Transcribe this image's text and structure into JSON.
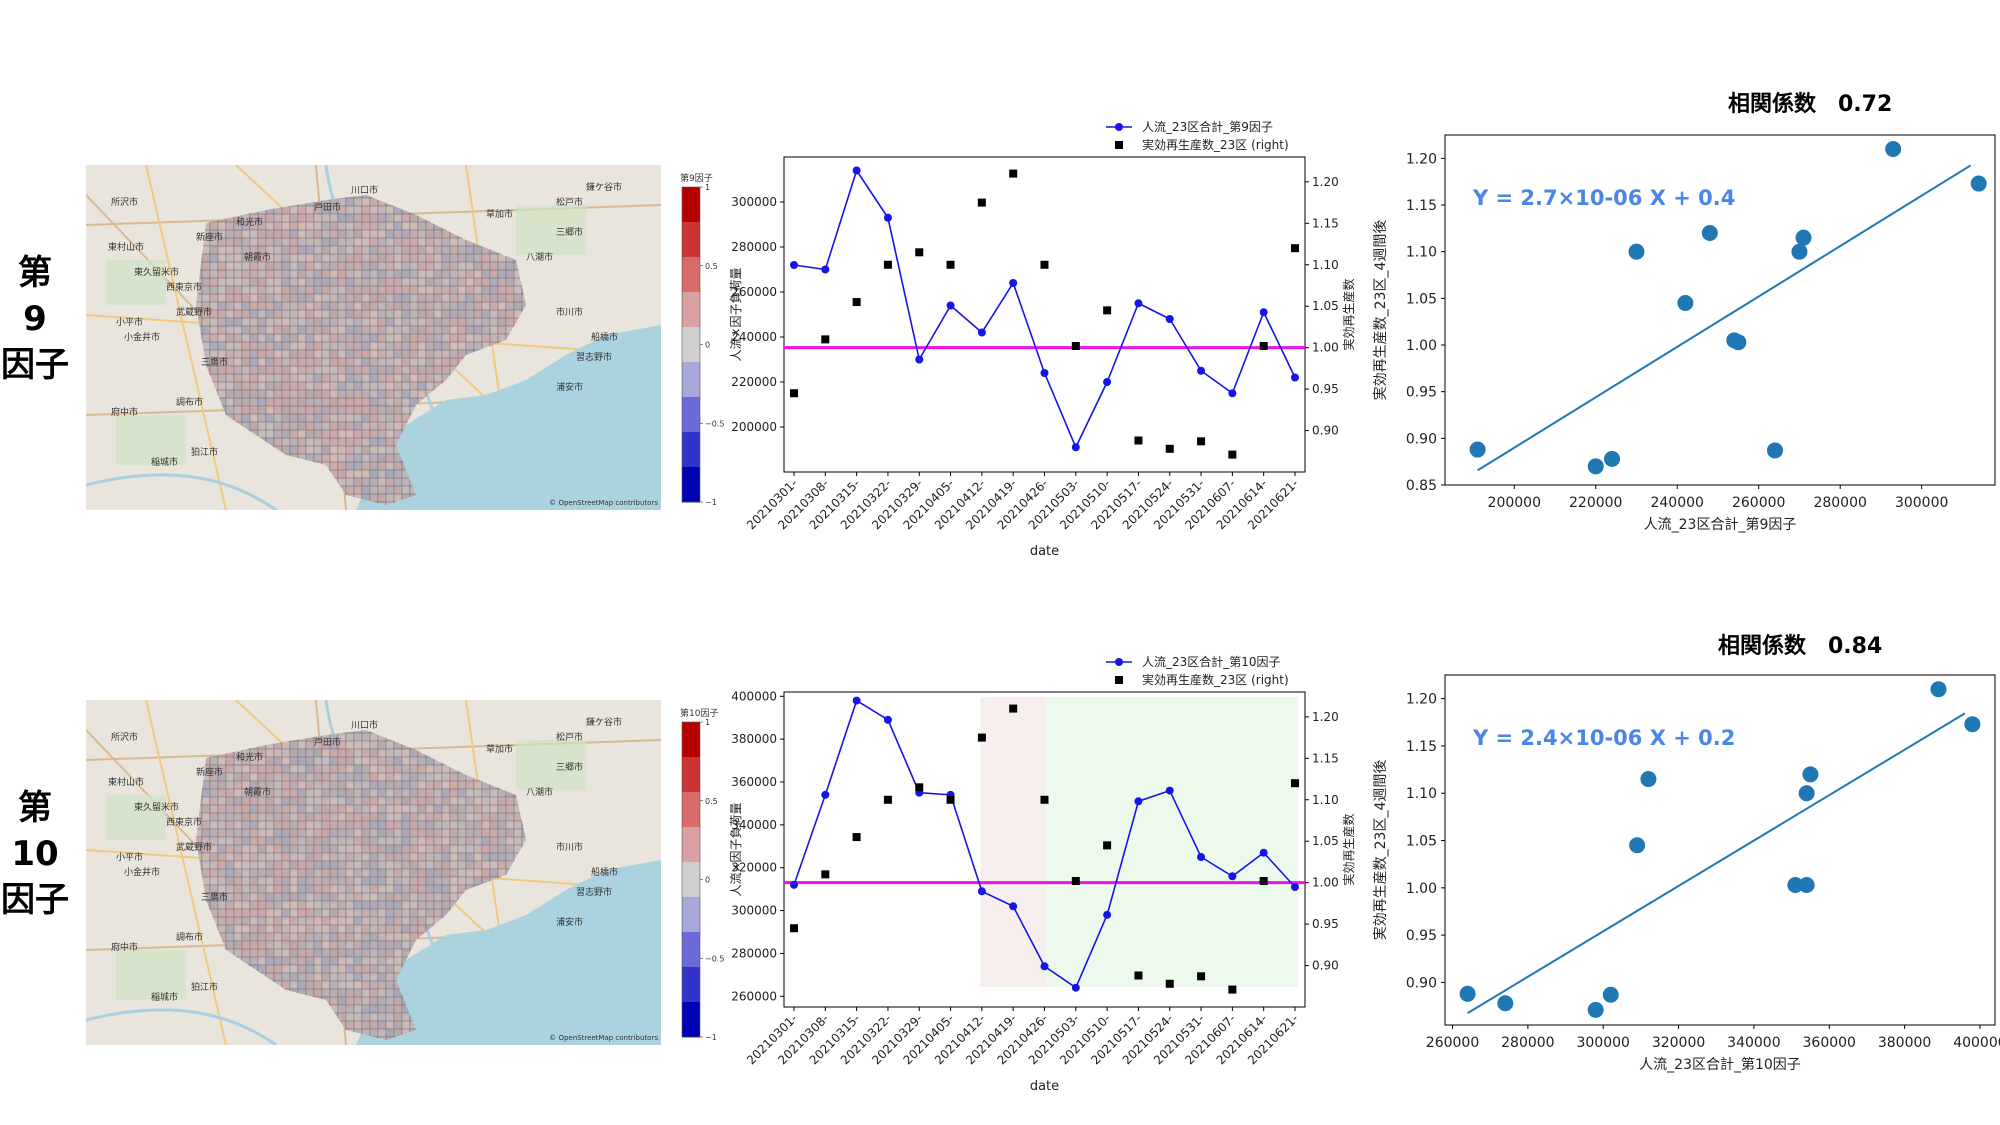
{
  "rows": [
    {
      "label_lines": [
        "第",
        "9",
        "因子"
      ],
      "map": {
        "colorbar_title": "第9因子",
        "colorbar_ticks": [
          "1",
          "0.5",
          "0",
          "−0.5",
          "−1"
        ],
        "attribution": "© OpenStreetMap contributors",
        "place_labels": [
          "所沢市",
          "東村山市",
          "東久留米市",
          "小平市",
          "小金井市",
          "西東京市",
          "武蔵野市",
          "三鷹市",
          "調布市",
          "府中市",
          "稲城市",
          "狛江市",
          "新座市",
          "和光市",
          "朝霞市",
          "戸田市",
          "川口市",
          "草加市",
          "八潮市",
          "三郷市",
          "松戸市",
          "市川市",
          "船橋市",
          "習志野市",
          "浦安市",
          "鎌ケ谷市"
        ]
      },
      "timeseries": {
        "legend": [
          "人流_23区合計_第9因子",
          "実効再生産数_23区 (right)"
        ],
        "ylabel_left": "人流×因子負荷量",
        "ylabel_right": "実効再生産数",
        "xlabel": "date",
        "shading": false
      },
      "scatter": {
        "corr_title": "相関係数　0.72",
        "equation": "Y = 2.7×10-06 X + 0.4",
        "xlabel": "人流_23区合計_第9因子",
        "ylabel": "実効再生産数_23区_4週間後"
      }
    },
    {
      "label_lines": [
        "第",
        "10",
        "因子"
      ],
      "map": {
        "colorbar_title": "第10因子",
        "colorbar_ticks": [
          "1",
          "0.5",
          "0",
          "−0.5",
          "−1"
        ],
        "attribution": "© OpenStreetMap contributors",
        "place_labels": [
          "所沢市",
          "東村山市",
          "東久留米市",
          "小平市",
          "小金井市",
          "西東京市",
          "武蔵野市",
          "三鷹市",
          "調布市",
          "府中市",
          "稲城市",
          "狛江市",
          "新座市",
          "和光市",
          "朝霞市",
          "戸田市",
          "川口市",
          "草加市",
          "八潮市",
          "三郷市",
          "松戸市",
          "市川市",
          "船橋市",
          "習志野市",
          "浦安市",
          "鎌ケ谷市"
        ]
      },
      "timeseries": {
        "legend": [
          "人流_23区合計_第10因子",
          "実効再生産数_23区 (right)"
        ],
        "ylabel_left": "人流×因子負荷量",
        "ylabel_right": "実効再生産数",
        "xlabel": "date",
        "shading": true
      },
      "scatter": {
        "corr_title": "相関係数　0.84",
        "equation": "Y = 2.4×10-06 X + 0.2",
        "xlabel": "人流_23区合計_第10因子",
        "ylabel": "実効再生産数_23区_4週間後"
      }
    }
  ],
  "chart_data": [
    {
      "type": "line",
      "x": [
        "20210301-",
        "20210308-",
        "20210315-",
        "20210322-",
        "20210329-",
        "20210405-",
        "20210412-",
        "20210419-",
        "20210426-",
        "20210503-",
        "20210510-",
        "20210517-",
        "20210524-",
        "20210531-",
        "20210607-",
        "20210614-",
        "20210621-"
      ],
      "series": [
        {
          "name": "人流_23区合計_第9因子",
          "axis": "left",
          "values": [
            272000,
            270000,
            314000,
            293000,
            230000,
            254000,
            242000,
            264000,
            224000,
            191000,
            220000,
            255000,
            248000,
            225000,
            215000,
            251000,
            222000
          ]
        },
        {
          "name": "実効再生産数_23区 (right)",
          "axis": "right",
          "values": [
            0.945,
            1.01,
            1.055,
            1.1,
            1.115,
            1.1,
            1.175,
            1.21,
            1.1,
            1.002,
            1.045,
            0.888,
            0.878,
            0.887,
            0.871,
            1.002,
            1.12
          ]
        }
      ],
      "ylim_left": [
        180000,
        320000
      ],
      "yticks_left": [
        200000,
        220000,
        240000,
        260000,
        280000,
        300000
      ],
      "ylim_right": [
        0.85,
        1.23
      ],
      "yticks_right": [
        0.9,
        0.95,
        1.0,
        1.05,
        1.1,
        1.15,
        1.2
      ],
      "reference_line": {
        "axis": "right",
        "y": 1.0,
        "color": "#ee11ee"
      },
      "colors": {
        "line": "#1515e8",
        "marker": "#000000"
      },
      "legend_placement": "top-right"
    },
    {
      "type": "scatter",
      "points": [
        [
          191000,
          0.888
        ],
        [
          220000,
          0.87
        ],
        [
          224000,
          0.878
        ],
        [
          230000,
          1.1
        ],
        [
          242000,
          1.045
        ],
        [
          248000,
          1.12
        ],
        [
          254000,
          1.005
        ],
        [
          255000,
          1.003
        ],
        [
          264000,
          0.887
        ],
        [
          270000,
          1.1
        ],
        [
          271000,
          1.115
        ],
        [
          293000,
          1.21
        ],
        [
          314000,
          1.173
        ]
      ],
      "fit": {
        "slope": 2.7e-06,
        "intercept": 0.35,
        "x_range": [
          191000,
          312000
        ]
      },
      "xlim": [
        183000,
        318000
      ],
      "ylim": [
        0.85,
        1.225
      ],
      "xticks": [
        200000,
        220000,
        240000,
        260000,
        280000,
        300000
      ],
      "yticks": [
        0.85,
        0.9,
        0.95,
        1.0,
        1.05,
        1.1,
        1.15,
        1.2
      ],
      "colors": {
        "point": "#1f77b4",
        "line": "#1f77b4",
        "equation": "#4a86e8"
      }
    },
    {
      "type": "line",
      "x": [
        "20210301-",
        "20210308-",
        "20210315-",
        "20210322-",
        "20210329-",
        "20210405-",
        "20210412-",
        "20210419-",
        "20210426-",
        "20210503-",
        "20210510-",
        "20210517-",
        "20210524-",
        "20210531-",
        "20210607-",
        "20210614-",
        "20210621-"
      ],
      "series": [
        {
          "name": "人流_23区合計_第10因子",
          "axis": "left",
          "values": [
            312000,
            354000,
            398000,
            389000,
            355000,
            354000,
            309000,
            302000,
            274000,
            264000,
            298000,
            351000,
            356000,
            325000,
            316000,
            327000,
            311000
          ]
        },
        {
          "name": "実効再生産数_23区 (right)",
          "axis": "right",
          "values": [
            0.945,
            1.01,
            1.055,
            1.1,
            1.115,
            1.1,
            1.175,
            1.21,
            1.1,
            1.002,
            1.045,
            0.888,
            0.878,
            0.887,
            0.871,
            1.002,
            1.12
          ]
        }
      ],
      "ylim_left": [
        255000,
        402000
      ],
      "yticks_left": [
        260000,
        280000,
        300000,
        320000,
        340000,
        360000,
        380000,
        400000
      ],
      "ylim_right": [
        0.85,
        1.23
      ],
      "yticks_right": [
        0.9,
        0.95,
        1.0,
        1.05,
        1.1,
        1.15,
        1.2
      ],
      "reference_line": {
        "axis": "right",
        "y": 1.0,
        "color": "#ee11ee"
      },
      "shaded_ranges": [
        {
          "from": 5.95,
          "to": 8.05,
          "color": "#f7eeee"
        },
        {
          "from": 8.05,
          "to": 16.1,
          "color": "#eef9ee"
        }
      ],
      "colors": {
        "line": "#1515e8",
        "marker": "#000000"
      },
      "legend_placement": "top-right"
    },
    {
      "type": "scatter",
      "points": [
        [
          264000,
          0.888
        ],
        [
          274000,
          0.878
        ],
        [
          298000,
          0.871
        ],
        [
          302000,
          0.887
        ],
        [
          309000,
          1.045
        ],
        [
          312000,
          1.115
        ],
        [
          351000,
          1.003
        ],
        [
          354000,
          1.1
        ],
        [
          354000,
          1.003
        ],
        [
          355000,
          1.12
        ],
        [
          389000,
          1.21
        ],
        [
          398000,
          1.173
        ]
      ],
      "fit": {
        "slope": 2.4e-06,
        "intercept": 0.234,
        "x_range": [
          264000,
          396000
        ]
      },
      "xlim": [
        258000,
        404000
      ],
      "ylim": [
        0.855,
        1.225
      ],
      "xticks": [
        260000,
        280000,
        300000,
        320000,
        340000,
        360000,
        380000,
        400000
      ],
      "yticks": [
        0.9,
        0.95,
        1.0,
        1.05,
        1.1,
        1.15,
        1.2
      ],
      "colors": {
        "point": "#1f77b4",
        "line": "#1f77b4",
        "equation": "#4a86e8"
      }
    }
  ]
}
